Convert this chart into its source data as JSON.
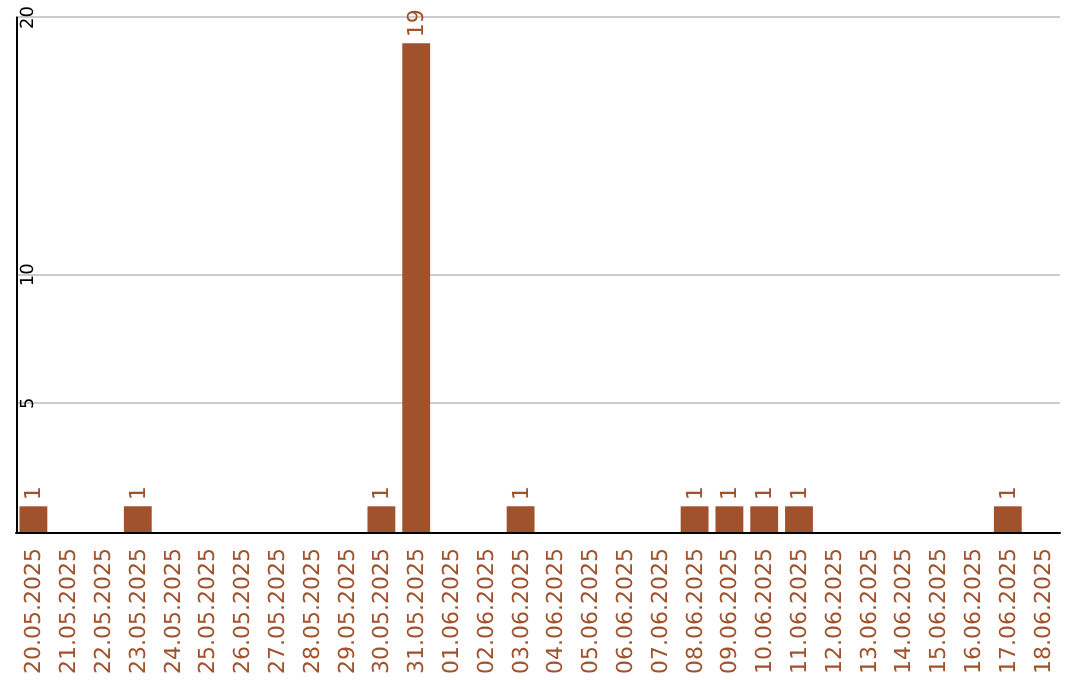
{
  "chart_data": {
    "type": "bar",
    "categories": [
      "20.05.2025",
      "21.05.2025",
      "22.05.2025",
      "23.05.2025",
      "24.05.2025",
      "25.05.2025",
      "26.05.2025",
      "27.05.2025",
      "28.05.2025",
      "29.05.2025",
      "30.05.2025",
      "31.05.2025",
      "01.06.2025",
      "02.06.2025",
      "03.06.2025",
      "04.06.2025",
      "05.06.2025",
      "06.06.2025",
      "07.06.2025",
      "08.06.2025",
      "09.06.2025",
      "10.06.2025",
      "11.06.2025",
      "12.06.2025",
      "13.06.2025",
      "14.06.2025",
      "15.06.2025",
      "16.06.2025",
      "17.06.2025",
      "18.06.2025"
    ],
    "values": [
      1,
      0,
      0,
      1,
      0,
      0,
      0,
      0,
      0,
      0,
      1,
      19,
      0,
      0,
      1,
      0,
      0,
      0,
      0,
      1,
      1,
      1,
      1,
      0,
      0,
      0,
      0,
      0,
      1,
      0
    ],
    "value_labels": [
      "1",
      null,
      null,
      "1",
      null,
      null,
      null,
      null,
      null,
      null,
      "1",
      "19",
      null,
      null,
      "1",
      null,
      null,
      null,
      null,
      "1",
      "1",
      "1",
      "1",
      null,
      null,
      null,
      null,
      null,
      "1",
      null
    ],
    "color": "#a0522d",
    "ylim": [
      0,
      20
    ],
    "yticks": [
      5,
      10,
      20
    ],
    "grid": "y"
  }
}
